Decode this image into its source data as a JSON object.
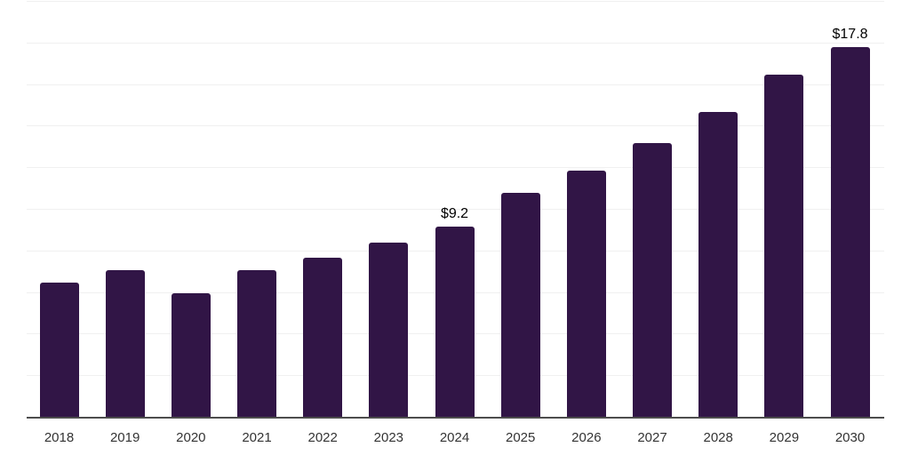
{
  "chart_data": {
    "type": "bar",
    "categories": [
      "2018",
      "2019",
      "2020",
      "2021",
      "2022",
      "2023",
      "2024",
      "2025",
      "2026",
      "2027",
      "2028",
      "2029",
      "2030"
    ],
    "values": [
      6.5,
      7.1,
      6.0,
      7.1,
      7.7,
      8.4,
      9.2,
      10.8,
      11.9,
      13.2,
      14.7,
      16.5,
      17.8
    ],
    "data_labels": [
      "",
      "",
      "",
      "",
      "",
      "",
      "$9.2",
      "",
      "",
      "",
      "",
      "",
      "$17.8"
    ],
    "value_prefix": "$",
    "xlabel": "",
    "ylabel": "",
    "ylim": [
      0,
      20
    ],
    "gridline_step": 2,
    "grid": "on",
    "legend": "none",
    "colors": {
      "bar": "#311546",
      "axis_line": "#4d4d4d",
      "gridline": "#f0f0f0",
      "tick_label": "#333333",
      "data_label": "#000000",
      "background": "#ffffff"
    }
  }
}
